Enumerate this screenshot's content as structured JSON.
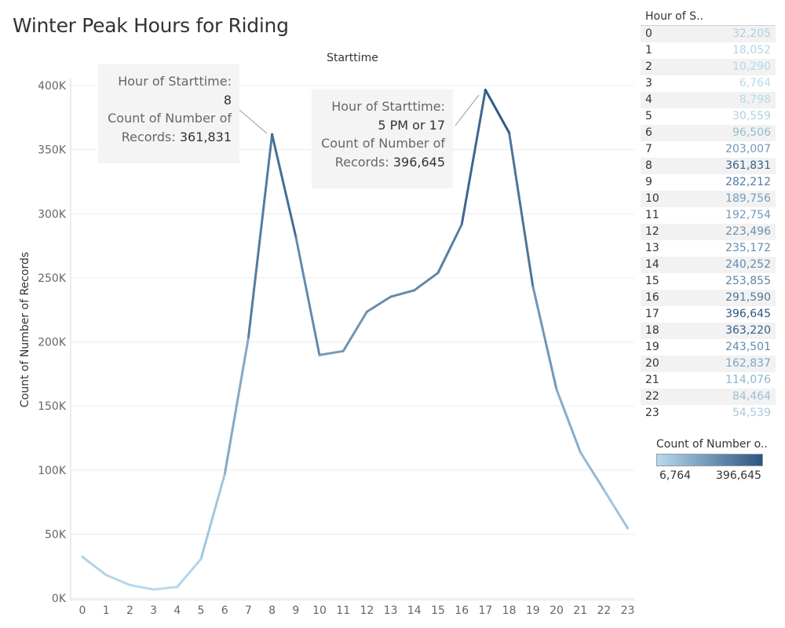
{
  "title": "Winter Peak Hours for Riding",
  "chart_data": {
    "type": "line",
    "title": "Winter Peak Hours for Riding",
    "xlabel": "Starttime",
    "ylabel": "Count of Number of Records",
    "x": [
      0,
      1,
      2,
      3,
      4,
      5,
      6,
      7,
      8,
      9,
      10,
      11,
      12,
      13,
      14,
      15,
      16,
      17,
      18,
      19,
      20,
      21,
      22,
      23
    ],
    "values": [
      32205,
      18052,
      10290,
      6764,
      8798,
      30559,
      96506,
      203007,
      361831,
      282212,
      189756,
      192754,
      223496,
      235172,
      240252,
      253855,
      291590,
      396645,
      363220,
      243501,
      162837,
      114076,
      84464,
      54539
    ],
    "ylim": [
      0,
      400000
    ],
    "yticks": [
      "0K",
      "50K",
      "100K",
      "150K",
      "200K",
      "250K",
      "300K",
      "350K",
      "400K"
    ],
    "grid": true,
    "color_range": [
      "#b7d9ee",
      "#2b5580"
    ]
  },
  "sidebar": {
    "header": "Hour of S..",
    "rows": [
      {
        "hour": "0",
        "count": "32,205"
      },
      {
        "hour": "1",
        "count": "18,052"
      },
      {
        "hour": "2",
        "count": "10,290"
      },
      {
        "hour": "3",
        "count": "6,764"
      },
      {
        "hour": "4",
        "count": "8,798"
      },
      {
        "hour": "5",
        "count": "30,559"
      },
      {
        "hour": "6",
        "count": "96,506"
      },
      {
        "hour": "7",
        "count": "203,007"
      },
      {
        "hour": "8",
        "count": "361,831"
      },
      {
        "hour": "9",
        "count": "282,212"
      },
      {
        "hour": "10",
        "count": "189,756"
      },
      {
        "hour": "11",
        "count": "192,754"
      },
      {
        "hour": "12",
        "count": "223,496"
      },
      {
        "hour": "13",
        "count": "235,172"
      },
      {
        "hour": "14",
        "count": "240,252"
      },
      {
        "hour": "15",
        "count": "253,855"
      },
      {
        "hour": "16",
        "count": "291,590"
      },
      {
        "hour": "17",
        "count": "396,645"
      },
      {
        "hour": "18",
        "count": "363,220"
      },
      {
        "hour": "19",
        "count": "243,501"
      },
      {
        "hour": "20",
        "count": "162,837"
      },
      {
        "hour": "21",
        "count": "114,076"
      },
      {
        "hour": "22",
        "count": "84,464"
      },
      {
        "hour": "23",
        "count": "54,539"
      }
    ]
  },
  "legend": {
    "title": "Count of Number o..",
    "min": "6,764",
    "max": "396,645"
  },
  "tooltips": [
    {
      "hour_label": "Hour of Starttime:",
      "hour_value": "8",
      "count_label_1": "Count of Number of",
      "count_label_2": "Records:",
      "count_value": "361,831"
    },
    {
      "hour_label": "Hour of Starttime:",
      "hour_value": "5 PM or 17",
      "count_label_1": "Count of Number of",
      "count_label_2": "Records:",
      "count_value": "396,645"
    }
  ]
}
